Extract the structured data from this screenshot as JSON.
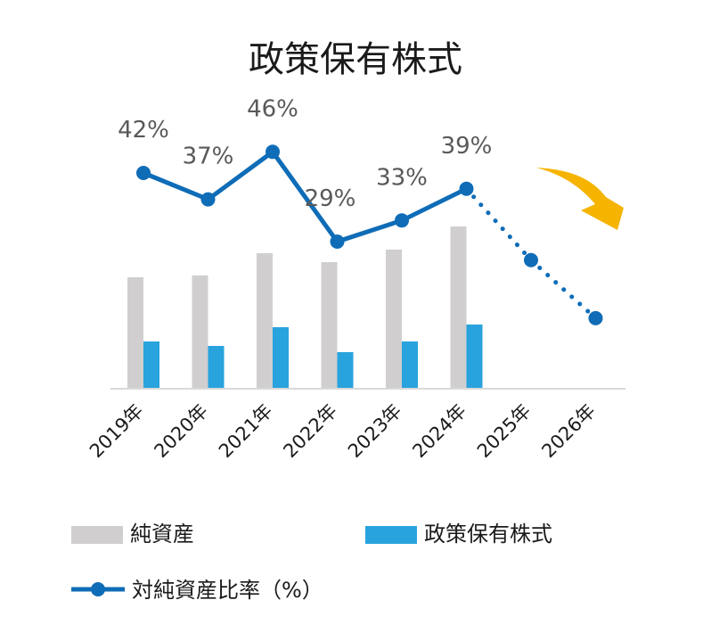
{
  "chart_data": {
    "type": "bar",
    "title": "政策保有株式",
    "categories": [
      "2019年",
      "2020年",
      "2021年",
      "2022年",
      "2023年",
      "2024年",
      "2025年",
      "2026年"
    ],
    "series": [
      {
        "name": "純資産",
        "kind": "bar",
        "color": "#d0cece",
        "values": [
          124,
          126,
          151,
          141,
          155,
          181,
          null,
          null
        ]
      },
      {
        "name": "政策保有株式",
        "kind": "bar",
        "color": "#29a3dd",
        "values": [
          52,
          47,
          68,
          40,
          52,
          71,
          null,
          null
        ]
      },
      {
        "name": "対純資産比率（%）",
        "kind": "line",
        "color": "#0f6cb7",
        "values": [
          42,
          37,
          46,
          29,
          33,
          39,
          25.5,
          14.5
        ],
        "projected_from_index": 5,
        "data_labels": [
          "42%",
          "37%",
          "46%",
          "29%",
          "33%",
          "39%",
          "",
          ""
        ]
      }
    ],
    "legend": {
      "placement": "bottom"
    },
    "grid": false,
    "trend_arrow": {
      "color": "#f5b400",
      "direction": "down"
    }
  }
}
